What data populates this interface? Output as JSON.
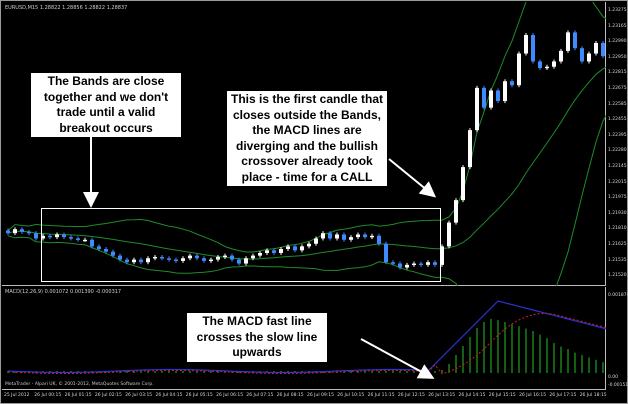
{
  "window": {
    "chart_title": "EURUSD,M15  1.28822 1.28856 1.28822 1.28837",
    "macd_title": "MACD(12,26,9) 0.001072 0.001390 -0.000317",
    "copyright": "MetaTrader - Alpari UK, © 2001-2012, MetaQuotes Software Corp."
  },
  "price_axis": {
    "labels": [
      "1.23275",
      "1.23165",
      "1.22990",
      "1.22950",
      "1.22815",
      "1.22675",
      "1.22585",
      "1.22455",
      "1.22395",
      "1.22280",
      "1.22145",
      "1.22015",
      "1.21975",
      "1.21930",
      "1.21810",
      "1.21625",
      "1.21535",
      "1.21520"
    ]
  },
  "macd_axis": {
    "labels": [
      "0.001870",
      "0.00",
      "-0.001510"
    ]
  },
  "time_axis": {
    "labels": [
      "25 Jul 2012",
      "26 Jul 00:15",
      "26 Jul 01:15",
      "26 Jul 02:15",
      "26 Jul 03:15",
      "26 Jul 04:15",
      "26 Jul 05:15",
      "26 Jul 06:15",
      "26 Jul 07:15",
      "26 Jul 08:15",
      "26 Jul 09:15",
      "26 Jul 10:15",
      "26 Jul 11:15",
      "26 Jul 12:15",
      "26 Jul 13:15",
      "26 Jul 14:15",
      "26 Jul 15:15",
      "26 Jul 16:15",
      "26 Jul 17:15",
      "26 Jul 18:15"
    ]
  },
  "annotations": {
    "bands_note": "The Bands are close together and we don't trade until a valid breakout occurs",
    "candle_note": "This is the first candle that closes outside the Bands, the MACD lines are diverging and the bullish crossover already took place - time for a CALL",
    "macd_note": "The MACD fast line crosses the slow line upwards"
  },
  "colors": {
    "background": "#000000",
    "bull_candle": "#ffffff",
    "bear_candle": "#3c8cff",
    "bands": "#1e8c2a",
    "macd_fast": "#2a34d8",
    "macd_slow": "#d21e1e",
    "histogram": "#1ea01e"
  },
  "candles": [
    {
      "o": 1.2162,
      "c": 1.216
    },
    {
      "o": 1.216,
      "c": 1.2163
    },
    {
      "o": 1.2163,
      "c": 1.2161
    },
    {
      "o": 1.2161,
      "c": 1.216
    },
    {
      "o": 1.216,
      "c": 1.2156
    },
    {
      "o": 1.2156,
      "c": 1.2158
    },
    {
      "o": 1.2158,
      "c": 1.2157
    },
    {
      "o": 1.2157,
      "c": 1.2159
    },
    {
      "o": 1.2159,
      "c": 1.2157
    },
    {
      "o": 1.2157,
      "c": 1.2156
    },
    {
      "o": 1.2156,
      "c": 1.2155
    },
    {
      "o": 1.2155,
      "c": 1.2155
    },
    {
      "o": 1.2155,
      "c": 1.215
    },
    {
      "o": 1.215,
      "c": 1.2148
    },
    {
      "o": 1.2148,
      "c": 1.2146
    },
    {
      "o": 1.2146,
      "c": 1.2143
    },
    {
      "o": 1.2143,
      "c": 1.214
    },
    {
      "o": 1.214,
      "c": 1.2138
    },
    {
      "o": 1.2138,
      "c": 1.214
    },
    {
      "o": 1.214,
      "c": 1.2138
    },
    {
      "o": 1.2138,
      "c": 1.2141
    },
    {
      "o": 1.2141,
      "c": 1.2142
    },
    {
      "o": 1.2142,
      "c": 1.2141
    },
    {
      "o": 1.2141,
      "c": 1.214
    },
    {
      "o": 1.214,
      "c": 1.2139
    },
    {
      "o": 1.2139,
      "c": 1.2141
    },
    {
      "o": 1.2141,
      "c": 1.2143
    },
    {
      "o": 1.2143,
      "c": 1.2141
    },
    {
      "o": 1.2141,
      "c": 1.2139
    },
    {
      "o": 1.2139,
      "c": 1.214
    },
    {
      "o": 1.214,
      "c": 1.2142
    },
    {
      "o": 1.2142,
      "c": 1.2143
    },
    {
      "o": 1.2143,
      "c": 1.214
    },
    {
      "o": 1.214,
      "c": 1.2137
    },
    {
      "o": 1.2137,
      "c": 1.2141
    },
    {
      "o": 1.2141,
      "c": 1.2143
    },
    {
      "o": 1.2143,
      "c": 1.2145
    },
    {
      "o": 1.2145,
      "c": 1.2147
    },
    {
      "o": 1.2147,
      "c": 1.2145
    },
    {
      "o": 1.2145,
      "c": 1.2148
    },
    {
      "o": 1.2148,
      "c": 1.215
    },
    {
      "o": 1.215,
      "c": 1.2147
    },
    {
      "o": 1.2147,
      "c": 1.215
    },
    {
      "o": 1.215,
      "c": 1.2152
    },
    {
      "o": 1.2152,
      "c": 1.2156
    },
    {
      "o": 1.2156,
      "c": 1.216
    },
    {
      "o": 1.216,
      "c": 1.2156
    },
    {
      "o": 1.2156,
      "c": 1.2159
    },
    {
      "o": 1.2159,
      "c": 1.2155
    },
    {
      "o": 1.2155,
      "c": 1.2157
    },
    {
      "o": 1.2157,
      "c": 1.2159
    },
    {
      "o": 1.2159,
      "c": 1.2157
    },
    {
      "o": 1.2157,
      "c": 1.2158
    },
    {
      "o": 1.2158,
      "c": 1.2152
    },
    {
      "o": 1.2152,
      "c": 1.2138
    },
    {
      "o": 1.2138,
      "c": 1.2137
    },
    {
      "o": 1.2137,
      "c": 1.2134
    },
    {
      "o": 1.2134,
      "c": 1.2136
    },
    {
      "o": 1.2136,
      "c": 1.2137
    },
    {
      "o": 1.2137,
      "c": 1.2136
    },
    {
      "o": 1.2136,
      "c": 1.2138
    },
    {
      "o": 1.2138,
      "c": 1.2136
    },
    {
      "o": 1.2136,
      "c": 1.215
    },
    {
      "o": 1.215,
      "c": 1.2168
    },
    {
      "o": 1.2168,
      "c": 1.2185
    },
    {
      "o": 1.2185,
      "c": 1.221
    },
    {
      "o": 1.221,
      "c": 1.2238
    },
    {
      "o": 1.2238,
      "c": 1.227
    },
    {
      "o": 1.227,
      "c": 1.2255
    },
    {
      "o": 1.2255,
      "c": 1.2268
    },
    {
      "o": 1.2268,
      "c": 1.226
    },
    {
      "o": 1.226,
      "c": 1.2275
    },
    {
      "o": 1.2275,
      "c": 1.2272
    },
    {
      "o": 1.2272,
      "c": 1.2296
    },
    {
      "o": 1.2296,
      "c": 1.231
    },
    {
      "o": 1.231,
      "c": 1.229
    },
    {
      "o": 1.229,
      "c": 1.2285
    },
    {
      "o": 1.2285,
      "c": 1.2286
    },
    {
      "o": 1.2286,
      "c": 1.229
    },
    {
      "o": 1.229,
      "c": 1.2298
    },
    {
      "o": 1.2298,
      "c": 1.2312
    },
    {
      "o": 1.2312,
      "c": 1.23
    },
    {
      "o": 1.23,
      "c": 1.229
    },
    {
      "o": 1.229,
      "c": 1.2296
    },
    {
      "o": 1.2296,
      "c": 1.2304
    },
    {
      "o": 1.2304,
      "c": 1.2294
    },
    {
      "o": 1.2294,
      "c": 1.2297
    }
  ],
  "macd_hist": [
    0,
    0,
    0,
    0,
    0,
    0,
    0,
    0,
    0,
    0,
    0,
    0,
    0,
    0,
    0,
    0,
    0,
    0,
    0,
    0,
    0,
    0,
    0,
    0,
    0,
    0,
    0,
    0,
    0,
    0,
    0,
    0,
    0,
    0,
    0,
    0,
    0,
    0,
    0,
    0,
    0,
    0,
    0,
    0,
    0,
    0,
    0,
    0,
    0,
    0,
    0,
    0,
    0,
    0,
    0,
    0,
    0,
    0,
    0,
    0,
    0,
    0,
    0.05,
    0.15,
    0.3,
    0.45,
    0.6,
    0.75,
    0.85,
    0.9,
    0.88,
    0.85,
    0.82,
    0.78,
    0.74,
    0.7,
    0.64,
    0.58,
    0.5,
    0.44,
    0.4,
    0.34,
    0.3,
    0.26,
    0.22,
    0.18,
    0.15
  ]
}
